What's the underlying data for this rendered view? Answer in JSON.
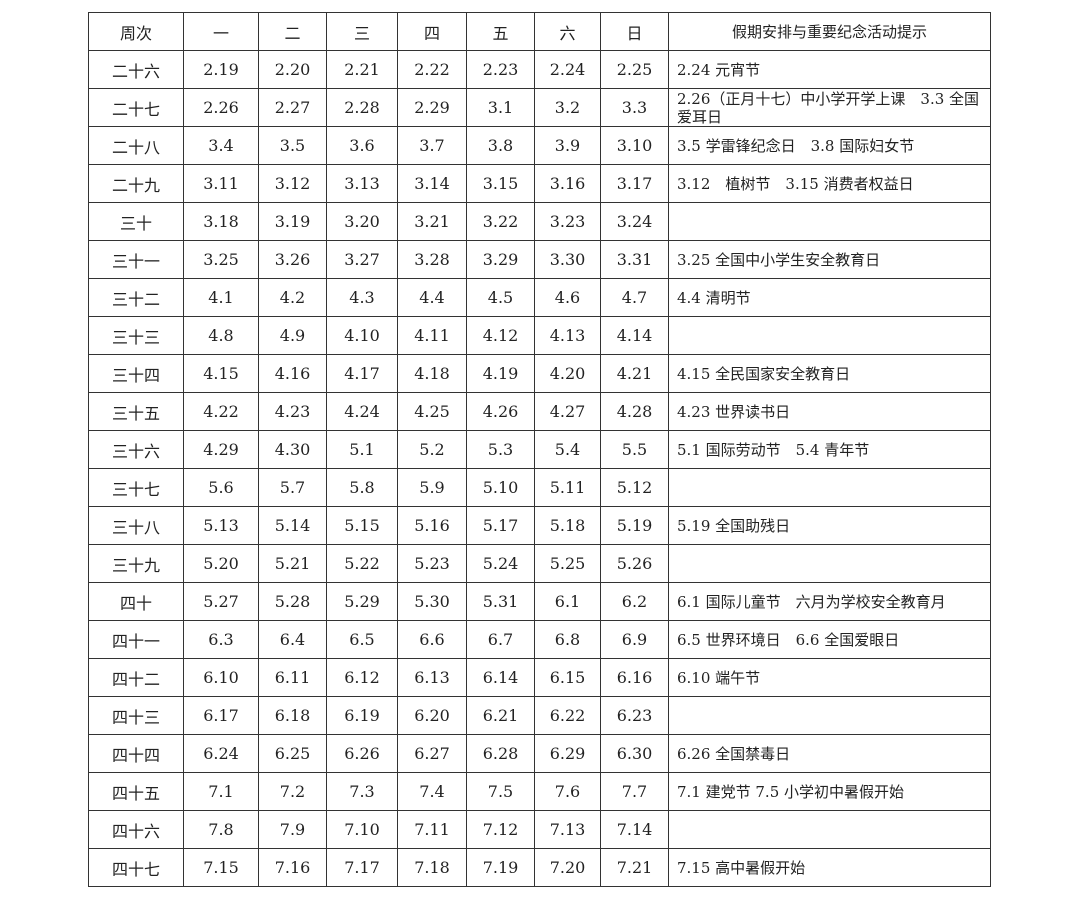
{
  "header": [
    "周次",
    "一",
    "二",
    "三",
    "四",
    "五",
    "六",
    "日",
    "假期安排与重要纪念活动提示"
  ],
  "rows": [
    {
      "week": "二十六",
      "days": [
        "2.19",
        "2.20",
        "2.21",
        "2.22",
        "2.23",
        "2.24",
        "2.25"
      ],
      "note": "2.24 元宵节"
    },
    {
      "week": "二十七",
      "days": [
        "2.26",
        "2.27",
        "2.28",
        "2.29",
        "3.1",
        "3.2",
        "3.3"
      ],
      "note": "2.26（正月十七）中小学开学上课　3.3 全国爱耳日"
    },
    {
      "week": "二十八",
      "days": [
        "3.4",
        "3.5",
        "3.6",
        "3.7",
        "3.8",
        "3.9",
        "3.10"
      ],
      "note": "3.5 学雷锋纪念日　3.8 国际妇女节"
    },
    {
      "week": "二十九",
      "days": [
        "3.11",
        "3.12",
        "3.13",
        "3.14",
        "3.15",
        "3.16",
        "3.17"
      ],
      "note": "3.12　植树节　3.15 消费者权益日"
    },
    {
      "week": "三十",
      "days": [
        "3.18",
        "3.19",
        "3.20",
        "3.21",
        "3.22",
        "3.23",
        "3.24"
      ],
      "note": ""
    },
    {
      "week": "三十一",
      "days": [
        "3.25",
        "3.26",
        "3.27",
        "3.28",
        "3.29",
        "3.30",
        "3.31"
      ],
      "note": "3.25 全国中小学生安全教育日"
    },
    {
      "week": "三十二",
      "days": [
        "4.1",
        "4.2",
        "4.3",
        "4.4",
        "4.5",
        "4.6",
        "4.7"
      ],
      "note": "4.4 清明节"
    },
    {
      "week": "三十三",
      "days": [
        "4.8",
        "4.9",
        "4.10",
        "4.11",
        "4.12",
        "4.13",
        "4.14"
      ],
      "note": ""
    },
    {
      "week": "三十四",
      "days": [
        "4.15",
        "4.16",
        "4.17",
        "4.18",
        "4.19",
        "4.20",
        "4.21"
      ],
      "note": "4.15 全民国家安全教育日"
    },
    {
      "week": "三十五",
      "days": [
        "4.22",
        "4.23",
        "4.24",
        "4.25",
        "4.26",
        "4.27",
        "4.28"
      ],
      "note": "4.23 世界读书日"
    },
    {
      "week": "三十六",
      "days": [
        "4.29",
        "4.30",
        "5.1",
        "5.2",
        "5.3",
        "5.4",
        "5.5"
      ],
      "note": "5.1 国际劳动节　5.4 青年节"
    },
    {
      "week": "三十七",
      "days": [
        "5.6",
        "5.7",
        "5.8",
        "5.9",
        "5.10",
        "5.11",
        "5.12"
      ],
      "note": ""
    },
    {
      "week": "三十八",
      "days": [
        "5.13",
        "5.14",
        "5.15",
        "5.16",
        "5.17",
        "5.18",
        "5.19"
      ],
      "note": "5.19 全国助残日"
    },
    {
      "week": "三十九",
      "days": [
        "5.20",
        "5.21",
        "5.22",
        "5.23",
        "5.24",
        "5.25",
        "5.26"
      ],
      "note": ""
    },
    {
      "week": "四十",
      "days": [
        "5.27",
        "5.28",
        "5.29",
        "5.30",
        "5.31",
        "6.1",
        "6.2"
      ],
      "note": "6.1 国际儿童节　六月为学校安全教育月"
    },
    {
      "week": "四十一",
      "days": [
        "6.3",
        "6.4",
        "6.5",
        "6.6",
        "6.7",
        "6.8",
        "6.9"
      ],
      "note": "6.5 世界环境日　6.6 全国爱眼日"
    },
    {
      "week": "四十二",
      "days": [
        "6.10",
        "6.11",
        "6.12",
        "6.13",
        "6.14",
        "6.15",
        "6.16"
      ],
      "note": "6.10 端午节"
    },
    {
      "week": "四十三",
      "days": [
        "6.17",
        "6.18",
        "6.19",
        "6.20",
        "6.21",
        "6.22",
        "6.23"
      ],
      "note": ""
    },
    {
      "week": "四十四",
      "days": [
        "6.24",
        "6.25",
        "6.26",
        "6.27",
        "6.28",
        "6.29",
        "6.30"
      ],
      "note": "6.26 全国禁毒日"
    },
    {
      "week": "四十五",
      "days": [
        "7.1",
        "7.2",
        "7.3",
        "7.4",
        "7.5",
        "7.6",
        "7.7"
      ],
      "note": "7.1 建党节 7.5 小学初中暑假开始"
    },
    {
      "week": "四十六",
      "days": [
        "7.8",
        "7.9",
        "7.10",
        "7.11",
        "7.12",
        "7.13",
        "7.14"
      ],
      "note": ""
    },
    {
      "week": "四十七",
      "days": [
        "7.15",
        "7.16",
        "7.17",
        "7.18",
        "7.19",
        "7.20",
        "7.21"
      ],
      "note": "7.15 高中暑假开始"
    }
  ]
}
